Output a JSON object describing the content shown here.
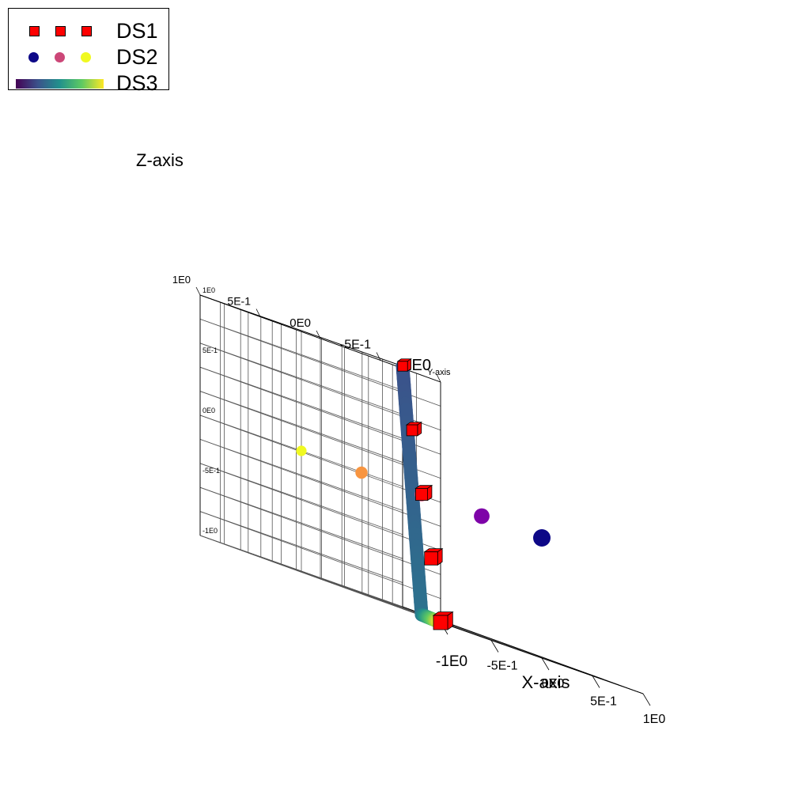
{
  "chart_data": {
    "type": "scatter",
    "title": "",
    "xlabel": "X-axis",
    "ylabel": "Y-axis",
    "zlabel": "Z-axis",
    "xlim": [
      -1,
      1
    ],
    "ylim": [
      -1,
      1
    ],
    "zlim": [
      -1,
      1
    ],
    "grid": true,
    "legend_position": "top-left",
    "x_ticks": [
      "-1E0",
      "-5E-1",
      "0E0",
      "5E-1",
      "1E0"
    ],
    "y_ticks": [
      "-1E0",
      "-5E-1",
      "0E0",
      "5E-1",
      "1E0"
    ],
    "z_ticks": [
      "-1E0",
      "-5E-1",
      "0E0",
      "5E-1",
      "1E0"
    ],
    "series": [
      {
        "name": "DS1",
        "marker": "cube",
        "color": "#ff0000",
        "points": [
          {
            "x": -1,
            "y": -1,
            "z": -1
          },
          {
            "x": -0.5,
            "y": -0.5,
            "z": -0.5
          },
          {
            "x": 0,
            "y": 0,
            "z": 0
          },
          {
            "x": 0.5,
            "y": 0.5,
            "z": 0.5
          },
          {
            "x": 1,
            "y": 1,
            "z": 1
          }
        ]
      },
      {
        "name": "DS2",
        "marker": "sphere",
        "colormap": "plasma",
        "points": [
          {
            "x": 0,
            "y": -1,
            "z": 0,
            "color": "#0d0887"
          },
          {
            "x": 0,
            "y": -0.5,
            "z": 0,
            "color": "#7e03a8"
          },
          {
            "x": 0,
            "y": 0,
            "z": 0,
            "color": "#cc4778"
          },
          {
            "x": 0,
            "y": 0.5,
            "z": 0,
            "color": "#f89540"
          },
          {
            "x": 0,
            "y": 1,
            "z": 0,
            "color": "#f0f921"
          }
        ]
      },
      {
        "name": "DS3",
        "marker": "line",
        "colormap": "viridis",
        "points": [
          {
            "x": 1,
            "y": 1,
            "z": 1,
            "color": "#3b528b"
          },
          {
            "x": 0,
            "y": 0,
            "z": -1,
            "color": "#2c728e"
          },
          {
            "x": -1,
            "y": -1,
            "z": -1,
            "color": "#fde725"
          }
        ]
      }
    ]
  },
  "legend": {
    "items": [
      {
        "label": "DS1"
      },
      {
        "label": "DS2"
      },
      {
        "label": "DS3"
      }
    ],
    "ds1_color": "#ff0000",
    "ds2_colors": [
      "#0d0887",
      "#cc4778",
      "#f0f921"
    ],
    "ds3_gradient": [
      "#440154",
      "#3b528b",
      "#21918c",
      "#5ec962",
      "#fde725"
    ]
  }
}
